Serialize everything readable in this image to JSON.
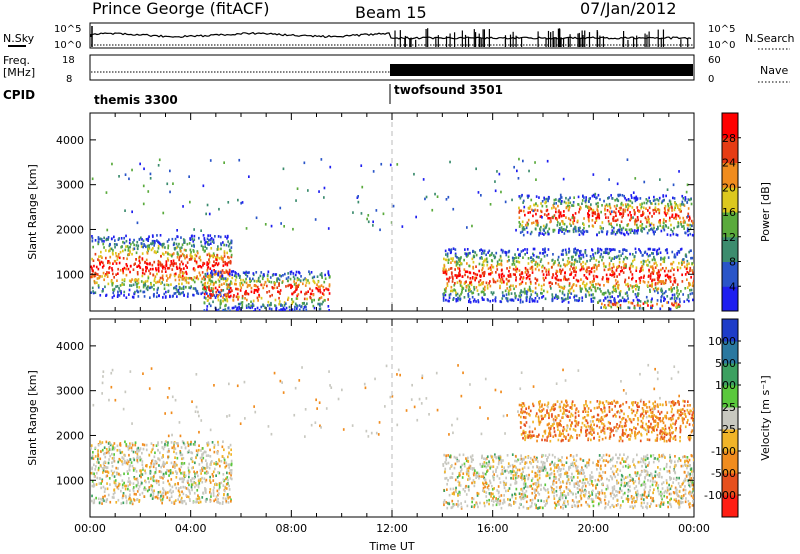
{
  "header": {
    "station": "Prince George (fitACF)",
    "beam": "Beam 15",
    "date": "07/Jan/2012"
  },
  "top_panels": {
    "nsky_label": "N.Sky",
    "nsky_ticks": [
      "10^5",
      "10^0"
    ],
    "nsearch_label": "N.Search",
    "nsearch_ticks": [
      "10^5",
      "10^0"
    ],
    "freq_label": "Freq.",
    "freq_unit": "[MHz]",
    "freq_ticks": [
      "18",
      "8"
    ],
    "nave_label": "Nave",
    "nave_ticks": [
      "60",
      "0"
    ],
    "cpid_label": "CPID",
    "cpid_segments": [
      {
        "name": "themis 3300",
        "start_hour": 0,
        "end_hour": 12
      },
      {
        "name": "twofsound 3501",
        "start_hour": 12,
        "end_hour": 24
      }
    ]
  },
  "chart_data": [
    {
      "type": "heatmap",
      "name": "power",
      "ylabel": "Slant Range [km]",
      "xlim": [
        0,
        24
      ],
      "ylim": [
        180,
        4600
      ],
      "yticks": [
        1000,
        2000,
        3000,
        4000
      ],
      "colorbar": {
        "label": "Power [dB]",
        "ticks": [
          "4",
          "8",
          "12",
          "16",
          "20",
          "24",
          "28"
        ],
        "colors": [
          "#1e1ef0",
          "#2a55c8",
          "#3c8c6e",
          "#5aaa3c",
          "#dcc81e",
          "#f08c1e",
          "#e63c14",
          "#ff0000"
        ]
      },
      "regions": [
        {
          "t0": 0.0,
          "t1": 5.6,
          "r0": 500,
          "r1": 1900,
          "note": "patchy scatter"
        },
        {
          "t0": 4.5,
          "t1": 9.5,
          "r0": 200,
          "r1": 1100
        },
        {
          "t0": 14.0,
          "t1": 24.0,
          "r0": 400,
          "r1": 1600
        },
        {
          "t0": 17.0,
          "t1": 24.0,
          "r0": 1900,
          "r1": 2800
        },
        {
          "t0": 20.0,
          "t1": 23.5,
          "r0": 250,
          "r1": 450
        }
      ]
    },
    {
      "type": "heatmap",
      "name": "velocity",
      "ylabel": "Slant Range [km]",
      "xlabel": "Time UT",
      "xlim": [
        0,
        24
      ],
      "ylim": [
        180,
        4600
      ],
      "xticks": [
        "00:00",
        "04:00",
        "08:00",
        "12:00",
        "16:00",
        "20:00",
        "00:00"
      ],
      "yticks": [
        1000,
        2000,
        3000,
        4000
      ],
      "colorbar": {
        "label": "Velocity [m s⁻¹]",
        "ticks": [
          "1000",
          "500",
          "100",
          "25",
          "-25",
          "-100",
          "-500",
          "-1000"
        ],
        "colors": [
          "#1e3cc8",
          "#2a78a0",
          "#3ca060",
          "#5ac83c",
          "#c8c8c0",
          "#f0b428",
          "#f08c1e",
          "#e6501e",
          "#ff1e14"
        ]
      },
      "regions": [
        {
          "t0": 0.0,
          "t1": 5.6,
          "r0": 500,
          "r1": 1900,
          "note": "ground scatter grey with orange"
        },
        {
          "t0": 14.0,
          "t1": 24.0,
          "r0": 400,
          "r1": 1600,
          "note": "ground scatter grey"
        },
        {
          "t0": 17.0,
          "t1": 24.0,
          "r0": 1900,
          "r1": 2800,
          "note": "orange negative velocities"
        }
      ]
    }
  ]
}
